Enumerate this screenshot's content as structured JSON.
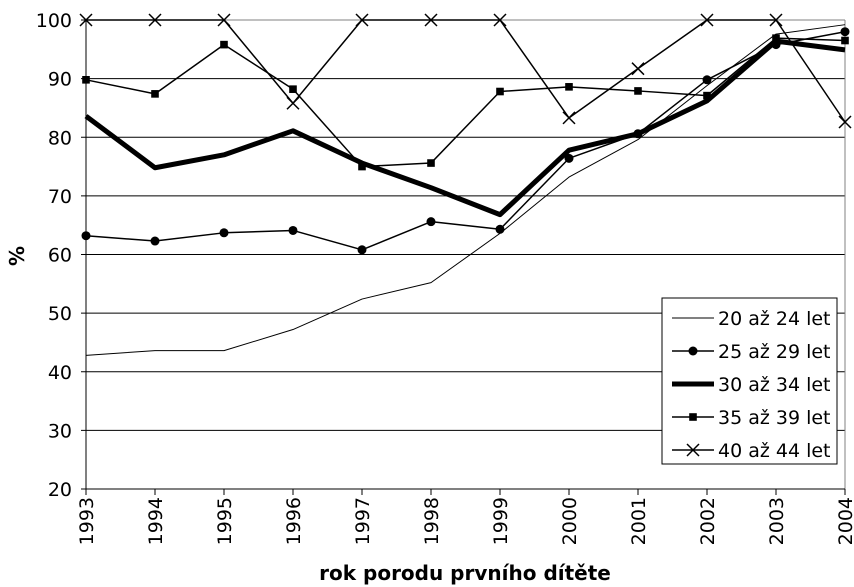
{
  "chart_data": {
    "type": "line",
    "x": [
      1993,
      1994,
      1995,
      1996,
      1997,
      1998,
      1999,
      2000,
      2001,
      2002,
      2003,
      2004
    ],
    "xlabel": "rok porodu prvního dítěte",
    "ylabel": "%",
    "ylim": [
      20,
      100
    ],
    "yticks": [
      20,
      30,
      40,
      50,
      60,
      70,
      80,
      90,
      100
    ],
    "grid": "horizontal",
    "legend_position": "bottom-right",
    "series": [
      {
        "name": "20 až 24 let",
        "marker": "none",
        "style": "thin",
        "values": [
          42.8,
          43.6,
          43.6,
          47.2,
          52.4,
          55.2,
          63.6,
          73.2,
          79.6,
          88.8,
          97.6,
          99.2
        ]
      },
      {
        "name": "25 až 29 let",
        "marker": "circle",
        "style": "normal",
        "values": [
          63.2,
          62.3,
          63.7,
          64.1,
          60.8,
          65.6,
          64.3,
          76.4,
          80.6,
          89.8,
          95.8,
          98.0
        ]
      },
      {
        "name": "30 až 34 let",
        "marker": "none",
        "style": "bold",
        "values": [
          83.6,
          74.8,
          77.0,
          81.1,
          75.6,
          71.4,
          66.8,
          77.8,
          80.6,
          86.2,
          96.4,
          94.9
        ]
      },
      {
        "name": "35 až 39 let",
        "marker": "square",
        "style": "normal",
        "values": [
          89.8,
          87.4,
          95.8,
          88.2,
          75.0,
          75.6,
          87.8,
          88.6,
          87.9,
          87.1,
          96.9,
          96.5
        ]
      },
      {
        "name": "40 až 44 let",
        "marker": "x",
        "style": "normal",
        "values": [
          100,
          100,
          100,
          85.8,
          100,
          100,
          100,
          83.3,
          91.7,
          100,
          100,
          82.6
        ]
      }
    ]
  }
}
